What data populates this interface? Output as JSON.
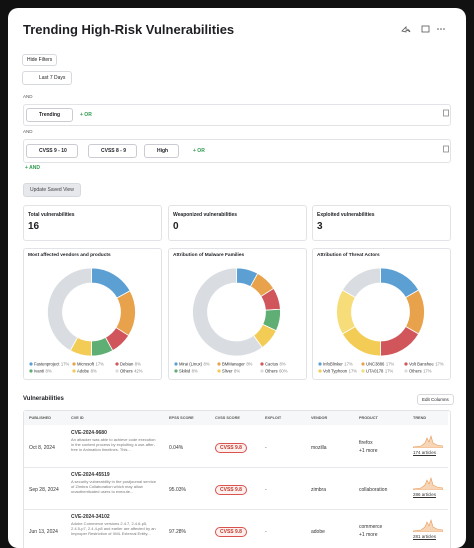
{
  "header": {
    "title": "Trending High-Risk Vulnerabilities"
  },
  "filters": {
    "hide": "Hide Filters",
    "range": "Last 7 Days",
    "and": "AND",
    "row1": [
      "Trending"
    ],
    "or": "+ OR",
    "row2": [
      "CVSS 9 - 10",
      "CVSS 8 - 9",
      "High"
    ],
    "add_and": "+ AND",
    "update": "Update Saved View"
  },
  "stats": [
    {
      "label": "Total vulnerabilities",
      "value": 16
    },
    {
      "label": "Weaponized vulnerabilities",
      "value": 0
    },
    {
      "label": "Exploited vulnerabilities",
      "value": 3
    }
  ],
  "donuts": [
    {
      "title": "Most affected vendors and products",
      "labels": [
        "Fastenproject",
        "Microsoft",
        "Debian",
        "Ivanti",
        "Adobe",
        "Others"
      ],
      "values": [
        17,
        17,
        8,
        8,
        8,
        42
      ],
      "value_labels": [
        "17%",
        "17%",
        "8%",
        "8%",
        "8%",
        "42%"
      ],
      "colors": [
        "#5b9fd3",
        "#e9a24c",
        "#d0565b",
        "#5fae74",
        "#f2cc55",
        "#d9dde2"
      ]
    },
    {
      "title": "Attribution of Malware Families",
      "labels": [
        "Mirai (Linux)",
        "BMManager",
        "Cactus",
        "Skikid",
        "Sliver",
        "Others"
      ],
      "values": [
        8,
        8,
        8,
        8,
        8,
        60
      ],
      "value_labels": [
        "8%",
        "8%",
        "8%",
        "8%",
        "8%",
        "60%"
      ],
      "colors": [
        "#5b9fd3",
        "#e9a24c",
        "#d0565b",
        "#5fae74",
        "#f2cc55",
        "#d9dde2"
      ]
    },
    {
      "title": "Attribution of Threat Actors",
      "labels": [
        "InfoBlinker",
        "UNC3886",
        "Volt Banshee",
        "Volt Typhoon",
        "UTA0178",
        "Others"
      ],
      "values": [
        17,
        17,
        17,
        17,
        17,
        17
      ],
      "value_labels": [
        "17%",
        "17%",
        "17%",
        "17%",
        "17%",
        "17%"
      ],
      "colors": [
        "#5b9fd3",
        "#e9a24c",
        "#d0565b",
        "#f2cc55",
        "#f7dd7a",
        "#d9dde2"
      ]
    }
  ],
  "table": {
    "title": "Vulnerabilities",
    "edit": "Edit Columns",
    "columns": [
      "PUBLISHED",
      "CVE ID",
      "EPSS SCORE",
      "CVSS SCORE",
      "EXPLOIT",
      "VENDOR",
      "PRODUCT",
      "TREND"
    ],
    "rows": [
      {
        "published": "Oct 8, 2024",
        "cve": "CVE-2024-9680",
        "desc": "An attacker was able to achieve code execution in the content process by exploiting a use-after-free in Animation timelines. This...",
        "epss": "0.04%",
        "cvss": "CVSS 9.8",
        "exploit": "-",
        "vendor": "mozilla",
        "product": "firefox",
        "more": "+1 more",
        "articles": "174 articles"
      },
      {
        "published": "Sep 28, 2024",
        "cve": "CVE-2024-45519",
        "desc": "A security vulnerability in the postjournal service of Zimbra Collaboration which may allow unauthenticated users to execute...",
        "epss": "95.03%",
        "cvss": "CVSS 9.8",
        "exploit": "-",
        "vendor": "zimbra",
        "product": "collaboration",
        "more": null,
        "articles": "286 articles"
      },
      {
        "published": "Jun 13, 2024",
        "cve": "CVE-2024-34102",
        "desc": "Adobe Commerce versions 2.4.7, 2.4.6-p5, 2.4.5-p7, 2.4.4-p8 and earlier are affected by an Improper Restriction of XML External Entity...",
        "epss": "97.28%",
        "cvss": "CVSS 9.8",
        "exploit": "-",
        "vendor": "adobe",
        "product": "commerce",
        "more": "+1 more",
        "articles": "281 articles"
      }
    ]
  }
}
